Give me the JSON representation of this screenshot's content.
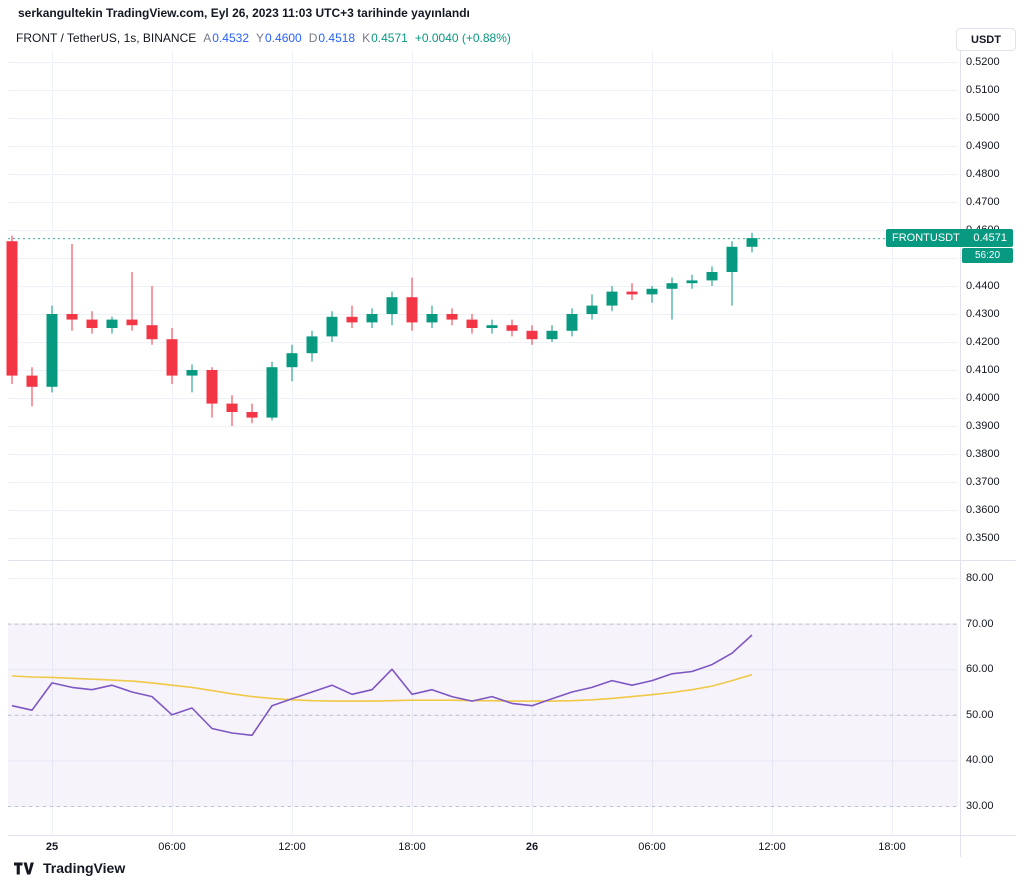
{
  "watermark": "serkangultekin TradingView.com, Eyl 26, 2023 11:03 UTC+3 tarihinde yayınlandı",
  "header": {
    "symbol": "FRONT / TetherUS, 1s, BINANCE",
    "ohlc": [
      {
        "label": "A",
        "value": "0.4532",
        "color": "#2962ff"
      },
      {
        "label": "Y",
        "value": "0.4600",
        "color": "#2962ff"
      },
      {
        "label": "D",
        "value": "0.4518",
        "color": "#2962ff"
      },
      {
        "label": "K",
        "value": "0.4571",
        "color": "#089981"
      }
    ],
    "change": {
      "text": "+0.0040 (+0.88%)",
      "color": "#089981"
    }
  },
  "currency_button": "USDT",
  "price_label": {
    "symbol": "FRONTUSDT",
    "price": "0.4571",
    "countdown": "56:20",
    "color": "#089981"
  },
  "price_axis": {
    "labels": [
      "0.5200",
      "0.5100",
      "0.5000",
      "0.4900",
      "0.4800",
      "0.4700",
      "0.4600",
      "0.4500",
      "0.4400",
      "0.4300",
      "0.4200",
      "0.4100",
      "0.4000",
      "0.3900",
      "0.3800",
      "0.3700",
      "0.3600",
      "0.3500"
    ]
  },
  "rsi_axis": {
    "labels": [
      "80.00",
      "70.00",
      "60.00",
      "50.00",
      "40.00",
      "30.00"
    ]
  },
  "time_axis": [
    {
      "label": "25",
      "bold": true
    },
    {
      "label": "06:00",
      "bold": false
    },
    {
      "label": "12:00",
      "bold": false
    },
    {
      "label": "18:00",
      "bold": false
    },
    {
      "label": "26",
      "bold": true
    },
    {
      "label": "06:00",
      "bold": false
    },
    {
      "label": "12:00",
      "bold": false
    },
    {
      "label": "18:00",
      "bold": false
    }
  ],
  "logo_text": "TradingView",
  "chart_data": [
    {
      "type": "candlestick",
      "title": "FRONT / TetherUS, 1s, BINANCE",
      "interval": "1s",
      "exchange": "BINANCE",
      "up_color": "#089981",
      "down_color": "#f23645",
      "y_range": [
        0.35,
        0.52
      ],
      "last_price": 0.4571,
      "open": 0.4532,
      "high": 0.46,
      "low": 0.4518,
      "close": 0.4571,
      "change": "+0.0040 (+0.88%)",
      "candles": [
        [
          0.456,
          0.458,
          0.405,
          0.408
        ],
        [
          0.408,
          0.411,
          0.397,
          0.404
        ],
        [
          0.404,
          0.433,
          0.402,
          0.43
        ],
        [
          0.43,
          0.455,
          0.424,
          0.428
        ],
        [
          0.428,
          0.431,
          0.423,
          0.425
        ],
        [
          0.425,
          0.429,
          0.423,
          0.428
        ],
        [
          0.428,
          0.445,
          0.424,
          0.426
        ],
        [
          0.426,
          0.44,
          0.419,
          0.421
        ],
        [
          0.421,
          0.425,
          0.405,
          0.408
        ],
        [
          0.408,
          0.412,
          0.402,
          0.41
        ],
        [
          0.41,
          0.411,
          0.393,
          0.398
        ],
        [
          0.398,
          0.401,
          0.39,
          0.395
        ],
        [
          0.395,
          0.398,
          0.391,
          0.393
        ],
        [
          0.393,
          0.413,
          0.392,
          0.411
        ],
        [
          0.411,
          0.419,
          0.406,
          0.416
        ],
        [
          0.416,
          0.424,
          0.413,
          0.422
        ],
        [
          0.422,
          0.431,
          0.42,
          0.429
        ],
        [
          0.429,
          0.433,
          0.425,
          0.427
        ],
        [
          0.427,
          0.432,
          0.425,
          0.43
        ],
        [
          0.43,
          0.438,
          0.426,
          0.436
        ],
        [
          0.436,
          0.443,
          0.424,
          0.427
        ],
        [
          0.427,
          0.433,
          0.425,
          0.43
        ],
        [
          0.43,
          0.432,
          0.426,
          0.428
        ],
        [
          0.428,
          0.43,
          0.423,
          0.425
        ],
        [
          0.425,
          0.428,
          0.423,
          0.426
        ],
        [
          0.426,
          0.428,
          0.422,
          0.424
        ],
        [
          0.424,
          0.426,
          0.419,
          0.421
        ],
        [
          0.421,
          0.426,
          0.42,
          0.424
        ],
        [
          0.424,
          0.432,
          0.422,
          0.43
        ],
        [
          0.43,
          0.437,
          0.428,
          0.433
        ],
        [
          0.433,
          0.44,
          0.431,
          0.438
        ],
        [
          0.438,
          0.441,
          0.435,
          0.437
        ],
        [
          0.437,
          0.44,
          0.434,
          0.439
        ],
        [
          0.439,
          0.443,
          0.428,
          0.441
        ],
        [
          0.441,
          0.444,
          0.439,
          0.442
        ],
        [
          0.442,
          0.447,
          0.44,
          0.445
        ],
        [
          0.445,
          0.456,
          0.433,
          0.454
        ],
        [
          0.454,
          0.459,
          0.452,
          0.4571
        ]
      ]
    },
    {
      "type": "line",
      "title": "RSI",
      "y_range": [
        30,
        80
      ],
      "bands": [
        70,
        50,
        30
      ],
      "band_fill": [
        30,
        70
      ],
      "band_fill_color": "rgba(126,87,194,0.07)",
      "series": [
        {
          "name": "RSI",
          "color": "#7e57c2",
          "values": [
            52,
            51,
            57,
            56,
            55.5,
            56.5,
            55,
            54,
            50,
            51.5,
            47,
            46,
            45.5,
            52,
            53.5,
            55,
            56.5,
            54.5,
            55.5,
            60,
            54.5,
            55.5,
            54,
            53,
            54,
            52.5,
            52,
            53.5,
            55,
            56,
            57.5,
            56.5,
            57.5,
            59,
            59.5,
            61,
            63.5,
            67.5
          ]
        },
        {
          "name": "RSI-based MA",
          "color": "#f0c948",
          "values": [
            58.5,
            58.3,
            58.2,
            58,
            57.8,
            57.6,
            57.4,
            57,
            56.5,
            56,
            55.3,
            54.6,
            54,
            53.6,
            53.3,
            53.1,
            53,
            53,
            53,
            53.1,
            53.2,
            53.2,
            53.2,
            53.1,
            53.1,
            53,
            53,
            53,
            53.1,
            53.3,
            53.6,
            54,
            54.4,
            54.9,
            55.5,
            56.3,
            57.5,
            58.8
          ]
        }
      ]
    }
  ]
}
